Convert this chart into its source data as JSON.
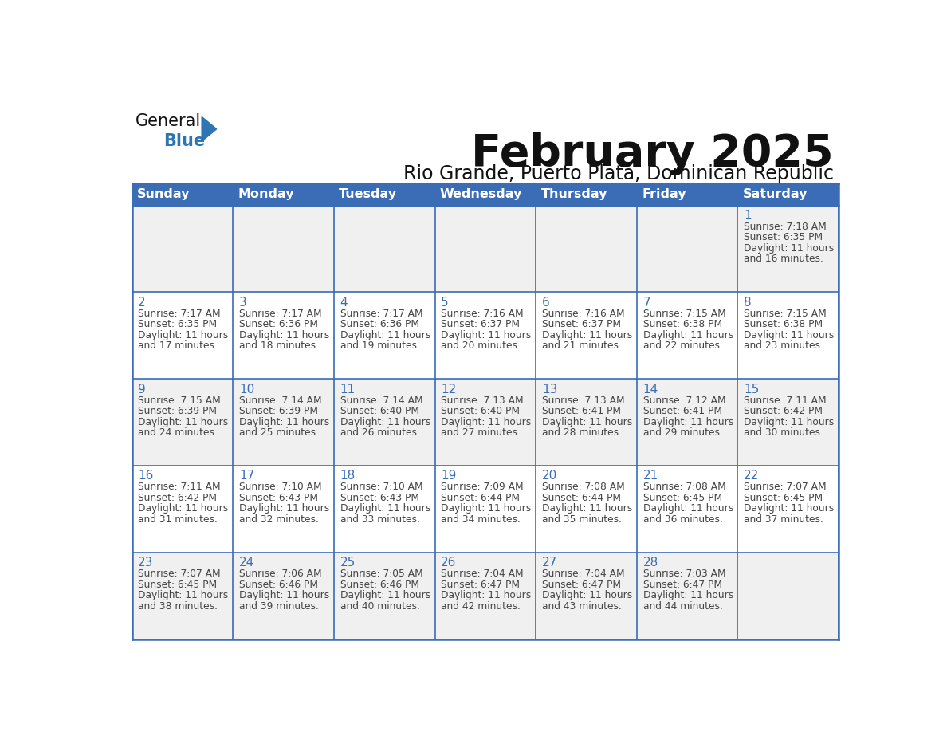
{
  "title": "February 2025",
  "subtitle": "Rio Grande, Puerto Plata, Dominican Republic",
  "days_of_week": [
    "Sunday",
    "Monday",
    "Tuesday",
    "Wednesday",
    "Thursday",
    "Friday",
    "Saturday"
  ],
  "header_bg": "#3a6db5",
  "header_text": "#FFFFFF",
  "cell_bg_odd": "#f0f0f0",
  "cell_bg_even": "#FFFFFF",
  "cell_border_color": "#3a6db5",
  "title_color": "#111111",
  "subtitle_color": "#111111",
  "text_color": "#444444",
  "day_num_color": "#3a6db5",
  "logo_general_color": "#111111",
  "logo_blue_color": "#2E75B6",
  "logo_triangle_color": "#2E75B6",
  "calendar": [
    [
      {
        "day": null,
        "sunrise": null,
        "sunset": null,
        "daylight_line1": null,
        "daylight_line2": null
      },
      {
        "day": null,
        "sunrise": null,
        "sunset": null,
        "daylight_line1": null,
        "daylight_line2": null
      },
      {
        "day": null,
        "sunrise": null,
        "sunset": null,
        "daylight_line1": null,
        "daylight_line2": null
      },
      {
        "day": null,
        "sunrise": null,
        "sunset": null,
        "daylight_line1": null,
        "daylight_line2": null
      },
      {
        "day": null,
        "sunrise": null,
        "sunset": null,
        "daylight_line1": null,
        "daylight_line2": null
      },
      {
        "day": null,
        "sunrise": null,
        "sunset": null,
        "daylight_line1": null,
        "daylight_line2": null
      },
      {
        "day": 1,
        "sunrise": "7:18 AM",
        "sunset": "6:35 PM",
        "daylight_line1": "Daylight: 11 hours",
        "daylight_line2": "and 16 minutes."
      }
    ],
    [
      {
        "day": 2,
        "sunrise": "7:17 AM",
        "sunset": "6:35 PM",
        "daylight_line1": "Daylight: 11 hours",
        "daylight_line2": "and 17 minutes."
      },
      {
        "day": 3,
        "sunrise": "7:17 AM",
        "sunset": "6:36 PM",
        "daylight_line1": "Daylight: 11 hours",
        "daylight_line2": "and 18 minutes."
      },
      {
        "day": 4,
        "sunrise": "7:17 AM",
        "sunset": "6:36 PM",
        "daylight_line1": "Daylight: 11 hours",
        "daylight_line2": "and 19 minutes."
      },
      {
        "day": 5,
        "sunrise": "7:16 AM",
        "sunset": "6:37 PM",
        "daylight_line1": "Daylight: 11 hours",
        "daylight_line2": "and 20 minutes."
      },
      {
        "day": 6,
        "sunrise": "7:16 AM",
        "sunset": "6:37 PM",
        "daylight_line1": "Daylight: 11 hours",
        "daylight_line2": "and 21 minutes."
      },
      {
        "day": 7,
        "sunrise": "7:15 AM",
        "sunset": "6:38 PM",
        "daylight_line1": "Daylight: 11 hours",
        "daylight_line2": "and 22 minutes."
      },
      {
        "day": 8,
        "sunrise": "7:15 AM",
        "sunset": "6:38 PM",
        "daylight_line1": "Daylight: 11 hours",
        "daylight_line2": "and 23 minutes."
      }
    ],
    [
      {
        "day": 9,
        "sunrise": "7:15 AM",
        "sunset": "6:39 PM",
        "daylight_line1": "Daylight: 11 hours",
        "daylight_line2": "and 24 minutes."
      },
      {
        "day": 10,
        "sunrise": "7:14 AM",
        "sunset": "6:39 PM",
        "daylight_line1": "Daylight: 11 hours",
        "daylight_line2": "and 25 minutes."
      },
      {
        "day": 11,
        "sunrise": "7:14 AM",
        "sunset": "6:40 PM",
        "daylight_line1": "Daylight: 11 hours",
        "daylight_line2": "and 26 minutes."
      },
      {
        "day": 12,
        "sunrise": "7:13 AM",
        "sunset": "6:40 PM",
        "daylight_line1": "Daylight: 11 hours",
        "daylight_line2": "and 27 minutes."
      },
      {
        "day": 13,
        "sunrise": "7:13 AM",
        "sunset": "6:41 PM",
        "daylight_line1": "Daylight: 11 hours",
        "daylight_line2": "and 28 minutes."
      },
      {
        "day": 14,
        "sunrise": "7:12 AM",
        "sunset": "6:41 PM",
        "daylight_line1": "Daylight: 11 hours",
        "daylight_line2": "and 29 minutes."
      },
      {
        "day": 15,
        "sunrise": "7:11 AM",
        "sunset": "6:42 PM",
        "daylight_line1": "Daylight: 11 hours",
        "daylight_line2": "and 30 minutes."
      }
    ],
    [
      {
        "day": 16,
        "sunrise": "7:11 AM",
        "sunset": "6:42 PM",
        "daylight_line1": "Daylight: 11 hours",
        "daylight_line2": "and 31 minutes."
      },
      {
        "day": 17,
        "sunrise": "7:10 AM",
        "sunset": "6:43 PM",
        "daylight_line1": "Daylight: 11 hours",
        "daylight_line2": "and 32 minutes."
      },
      {
        "day": 18,
        "sunrise": "7:10 AM",
        "sunset": "6:43 PM",
        "daylight_line1": "Daylight: 11 hours",
        "daylight_line2": "and 33 minutes."
      },
      {
        "day": 19,
        "sunrise": "7:09 AM",
        "sunset": "6:44 PM",
        "daylight_line1": "Daylight: 11 hours",
        "daylight_line2": "and 34 minutes."
      },
      {
        "day": 20,
        "sunrise": "7:08 AM",
        "sunset": "6:44 PM",
        "daylight_line1": "Daylight: 11 hours",
        "daylight_line2": "and 35 minutes."
      },
      {
        "day": 21,
        "sunrise": "7:08 AM",
        "sunset": "6:45 PM",
        "daylight_line1": "Daylight: 11 hours",
        "daylight_line2": "and 36 minutes."
      },
      {
        "day": 22,
        "sunrise": "7:07 AM",
        "sunset": "6:45 PM",
        "daylight_line1": "Daylight: 11 hours",
        "daylight_line2": "and 37 minutes."
      }
    ],
    [
      {
        "day": 23,
        "sunrise": "7:07 AM",
        "sunset": "6:45 PM",
        "daylight_line1": "Daylight: 11 hours",
        "daylight_line2": "and 38 minutes."
      },
      {
        "day": 24,
        "sunrise": "7:06 AM",
        "sunset": "6:46 PM",
        "daylight_line1": "Daylight: 11 hours",
        "daylight_line2": "and 39 minutes."
      },
      {
        "day": 25,
        "sunrise": "7:05 AM",
        "sunset": "6:46 PM",
        "daylight_line1": "Daylight: 11 hours",
        "daylight_line2": "and 40 minutes."
      },
      {
        "day": 26,
        "sunrise": "7:04 AM",
        "sunset": "6:47 PM",
        "daylight_line1": "Daylight: 11 hours",
        "daylight_line2": "and 42 minutes."
      },
      {
        "day": 27,
        "sunrise": "7:04 AM",
        "sunset": "6:47 PM",
        "daylight_line1": "Daylight: 11 hours",
        "daylight_line2": "and 43 minutes."
      },
      {
        "day": 28,
        "sunrise": "7:03 AM",
        "sunset": "6:47 PM",
        "daylight_line1": "Daylight: 11 hours",
        "daylight_line2": "and 44 minutes."
      },
      {
        "day": null,
        "sunrise": null,
        "sunset": null,
        "daylight_line1": null,
        "daylight_line2": null
      }
    ]
  ]
}
